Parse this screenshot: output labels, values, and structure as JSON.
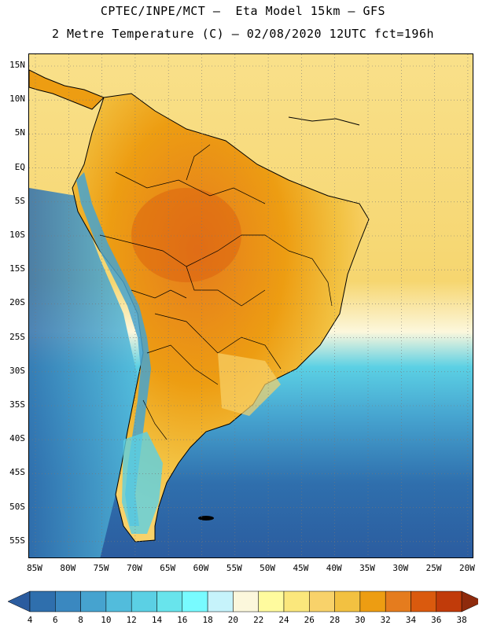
{
  "title_line1": "CPTEC/INPE/MCT –  Eta Model 15km – GFS",
  "title_line2": "2 Metre Temperature (C) – 02/08/2020 12UTC fct=196h",
  "lat_labels": [
    "15N",
    "10N",
    "5N",
    "EQ",
    "5S",
    "10S",
    "15S",
    "20S",
    "25S",
    "30S",
    "35S",
    "40S",
    "45S",
    "50S",
    "55S"
  ],
  "lon_labels": [
    "85W",
    "80W",
    "75W",
    "70W",
    "65W",
    "60W",
    "55W",
    "50W",
    "45W",
    "40W",
    "35W",
    "30W",
    "25W",
    "20W"
  ],
  "colorbar": {
    "labels": [
      "4",
      "6",
      "8",
      "10",
      "12",
      "14",
      "16",
      "18",
      "20",
      "22",
      "24",
      "26",
      "28",
      "30",
      "32",
      "34",
      "36",
      "38"
    ],
    "colors": [
      "#2b5c9f",
      "#2f6fad",
      "#3a88c0",
      "#46a3cf",
      "#52bcdc",
      "#5bd0e4",
      "#68e4ec",
      "#78fbff",
      "#c6f3fb",
      "#fcf7dc",
      "#fffb9e",
      "#fbe77c",
      "#f8d26a",
      "#f2c141",
      "#ed9d12",
      "#e57c1e",
      "#da5a0e",
      "#c13b0a",
      "#8e2a0c"
    ]
  },
  "map_colors": {
    "ocean_deep": "#2f5ea0",
    "ocean_mid": "#46a3cf",
    "ocean_cool": "#5bd0e4",
    "ocean_warm": "#f8d26a",
    "land_hot": "#e57c1e",
    "land_warm": "#ed9d12",
    "andes_cold": "#46a3cf",
    "coast": "#000000"
  }
}
